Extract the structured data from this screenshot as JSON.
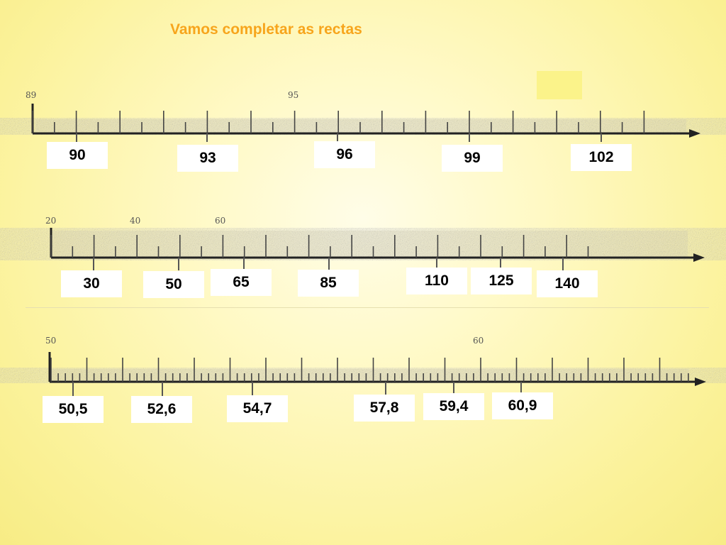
{
  "title": "Vamos completar as rectas",
  "lines": [
    {
      "id": "line-1",
      "start_label": "89",
      "mid_label": "95",
      "answers": [
        "90",
        "93",
        "96",
        "99",
        "102"
      ]
    },
    {
      "id": "line-2",
      "start_label": "20",
      "mid_labels": [
        "40",
        "60"
      ],
      "answers": [
        "30",
        "50",
        "65",
        "85",
        "110",
        "125",
        "140"
      ]
    },
    {
      "id": "line-3",
      "start_label": "50",
      "mid_label": "60",
      "answers": [
        "50,5",
        "52,6",
        "54,7",
        "57,8",
        "59,4",
        "60,9"
      ]
    }
  ]
}
